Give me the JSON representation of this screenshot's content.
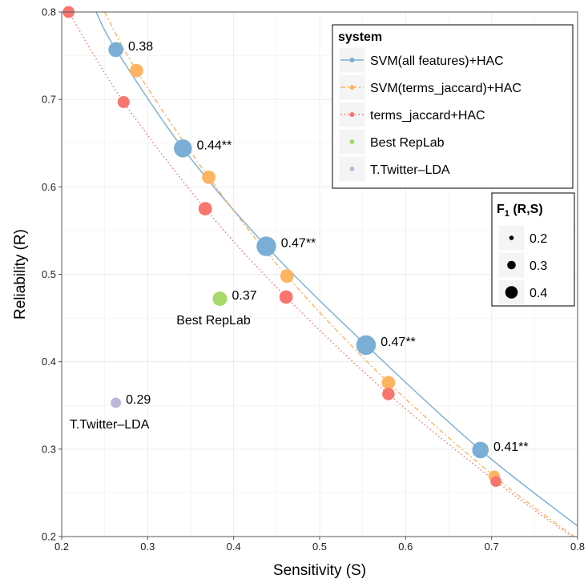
{
  "chart_data": {
    "type": "scatter",
    "xlabel": "Sensitivity (S)",
    "ylabel": "Reliability (R)",
    "xlim": [
      0.2,
      0.8
    ],
    "ylim": [
      0.2,
      0.8
    ],
    "x_ticks": [
      "0.2",
      "0.3",
      "0.4",
      "0.5",
      "0.6",
      "0.7",
      "0.8"
    ],
    "y_ticks": [
      "0.2",
      "0.3",
      "0.4",
      "0.5",
      "0.6",
      "0.7",
      "0.8"
    ],
    "grid": true,
    "colors": {
      "svm_all": "#7aaed4",
      "svm_terms": "#fdb462",
      "terms_hac": "#f8766d",
      "best_replab": "#a6d96a",
      "twitter_lda": "#bcb8d8",
      "panel_bg": "#ffffff",
      "grid": "#ececec"
    },
    "series": [
      {
        "name": "SVM(all features)+HAC",
        "color": "#7aaed4",
        "line": "solid",
        "points": [
          {
            "x": 0.263,
            "y": 0.757,
            "f1": 0.38,
            "label": "0.38"
          },
          {
            "x": 0.341,
            "y": 0.644,
            "f1": 0.44,
            "label": "0.44**"
          },
          {
            "x": 0.438,
            "y": 0.532,
            "f1": 0.47,
            "label": "0.47**"
          },
          {
            "x": 0.554,
            "y": 0.419,
            "f1": 0.47,
            "label": "0.47**"
          },
          {
            "x": 0.687,
            "y": 0.299,
            "f1": 0.41,
            "label": "0.41**"
          }
        ],
        "curve": [
          [
            0.24,
            0.8
          ],
          [
            0.263,
            0.757
          ],
          [
            0.341,
            0.644
          ],
          [
            0.438,
            0.532
          ],
          [
            0.554,
            0.419
          ],
          [
            0.687,
            0.299
          ],
          [
            0.8,
            0.212
          ]
        ]
      },
      {
        "name": "SVM(terms_jaccard)+HAC",
        "color": "#fdb462",
        "line": "dashdot",
        "points": [
          {
            "x": 0.287,
            "y": 0.733,
            "f1": 0.35
          },
          {
            "x": 0.371,
            "y": 0.611,
            "f1": 0.35
          },
          {
            "x": 0.462,
            "y": 0.498,
            "f1": 0.35
          },
          {
            "x": 0.58,
            "y": 0.376,
            "f1": 0.35
          },
          {
            "x": 0.703,
            "y": 0.269,
            "f1": 0.31
          }
        ],
        "curve": [
          [
            0.25,
            0.8
          ],
          [
            0.287,
            0.733
          ],
          [
            0.371,
            0.611
          ],
          [
            0.462,
            0.498
          ],
          [
            0.58,
            0.376
          ],
          [
            0.703,
            0.269
          ],
          [
            0.8,
            0.197
          ]
        ]
      },
      {
        "name": "terms_jaccard+HAC",
        "color": "#f8766d",
        "line": "dotted",
        "points": [
          {
            "x": 0.208,
            "y": 0.8,
            "f1": 0.32
          },
          {
            "x": 0.272,
            "y": 0.697,
            "f1": 0.32
          },
          {
            "x": 0.367,
            "y": 0.575,
            "f1": 0.35
          },
          {
            "x": 0.461,
            "y": 0.474,
            "f1": 0.35
          },
          {
            "x": 0.58,
            "y": 0.363,
            "f1": 0.33
          },
          {
            "x": 0.705,
            "y": 0.263,
            "f1": 0.3
          }
        ],
        "curve": [
          [
            0.208,
            0.8
          ],
          [
            0.272,
            0.697
          ],
          [
            0.367,
            0.575
          ],
          [
            0.461,
            0.474
          ],
          [
            0.58,
            0.363
          ],
          [
            0.705,
            0.263
          ],
          [
            0.8,
            0.195
          ]
        ]
      },
      {
        "name": "Best RepLab",
        "color": "#a6d96a",
        "line": "none",
        "points": [
          {
            "x": 0.384,
            "y": 0.472,
            "f1": 0.37,
            "label": "0.37",
            "name_label": "Best RepLab"
          }
        ]
      },
      {
        "name": "T.Twitter-LDA",
        "color": "#bcb8d8",
        "line": "none",
        "points": [
          {
            "x": 0.263,
            "y": 0.353,
            "f1": 0.29,
            "label": "0.29",
            "name_label": "T.Twitter–LDA"
          }
        ]
      }
    ],
    "legend": {
      "placement": "top-right",
      "title": "system",
      "entries": [
        "SVM(all features)+HAC",
        "SVM(terms_jaccard)+HAC",
        "terms_jaccard+HAC",
        "Best RepLab",
        "T.Twitter–LDA"
      ]
    },
    "size_legend": {
      "title_main": "F",
      "title_sub": "1",
      "title_rest": " (R,S)",
      "entries": [
        {
          "label": "0.2",
          "value": 0.2
        },
        {
          "label": "0.3",
          "value": 0.3
        },
        {
          "label": "0.4",
          "value": 0.4
        }
      ]
    }
  }
}
